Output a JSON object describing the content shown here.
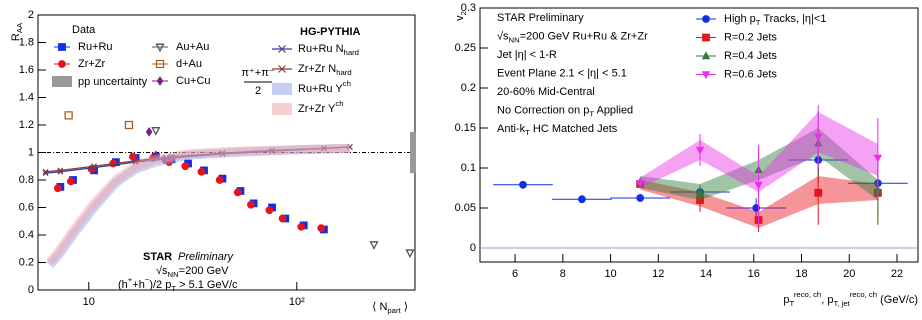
{
  "chart_data": [
    {
      "type": "scatter",
      "xlog": true,
      "ylabel": [
        "R",
        {
          "sub": "AA"
        }
      ],
      "xlabel": [
        "⟨ N",
        {
          "sub": "part"
        },
        " ⟩"
      ],
      "xlim": [
        5.7,
        370
      ],
      "ylim": [
        0,
        2
      ],
      "xticks": [
        10,
        {
          "value": 100,
          "label": "10²"
        }
      ],
      "yticks": [
        0,
        0.2,
        0.4,
        0.6,
        0.8,
        1,
        1.2,
        1.4,
        1.6,
        1.8,
        2
      ],
      "hline": 1,
      "legend_titles": [
        "Data",
        "HG-PYTHIA"
      ],
      "pp_uncertainty": {
        "name": [
          "pp uncertainty"
        ],
        "color": "#999999",
        "range": [
          0.85,
          1.15
        ]
      },
      "annotations": [
        [
          "STAR"
        ],
        [
          "Preliminary"
        ],
        [
          "√s",
          {
            "sub": "NN"
          },
          "=200 GeV"
        ],
        [
          "(h",
          {
            "sup": "+"
          },
          "+h",
          {
            "sup": "−"
          },
          ")/2  p",
          {
            "sub": "T"
          },
          " > 5.1 GeV/c"
        ]
      ],
      "series": [
        {
          "name": [
            "Ru+Ru"
          ],
          "type": "scatter",
          "marker": "square",
          "open": false,
          "color": "#1030e8",
          "x": [
            7.3,
            8.4,
            10.6,
            13.5,
            16.8,
            21,
            25,
            30,
            35.8,
            43.9,
            53.6,
            62,
            76,
            88,
            108,
            135
          ],
          "values": [
            0.75,
            0.8,
            0.87,
            0.93,
            0.96,
            0.97,
            0.95,
            0.92,
            0.87,
            0.81,
            0.72,
            0.63,
            0.6,
            0.52,
            0.47,
            0.44
          ]
        },
        {
          "name": [
            "Zr+Zr"
          ],
          "type": "scatter",
          "marker": "circle",
          "open": false,
          "color": "#e8141c",
          "x": [
            7.1,
            8.2,
            10.3,
            13.1,
            16.3,
            20.4,
            24.3,
            29.1,
            34.8,
            42.6,
            52,
            60.2,
            73.8,
            85.4,
            105,
            131
          ],
          "values": [
            0.74,
            0.79,
            0.88,
            0.92,
            0.97,
            0.96,
            0.93,
            0.9,
            0.86,
            0.8,
            0.71,
            0.62,
            0.58,
            0.52,
            0.46,
            0.45
          ]
        },
        {
          "name": [
            "Au+Au"
          ],
          "type": "scatter",
          "marker": "triangle-down",
          "open": true,
          "color": "#555555",
          "x": [
            21,
            235,
            350
          ],
          "values": [
            1.16,
            0.33,
            0.27
          ]
        },
        {
          "name": [
            "d+Au"
          ],
          "type": "scatter",
          "marker": "square",
          "open": true,
          "color": "#b05a1a",
          "x": [
            8,
            15.6
          ],
          "values": [
            1.27,
            1.2
          ]
        },
        {
          "name": [
            "Cu+Cu"
          ],
          "type": "scatter",
          "marker": "diamond",
          "open": false,
          "color": "#7a1f8a",
          "fraction_num": "π⁺+π⁻",
          "fraction_den": "2",
          "x": [
            19.5,
            21,
            23
          ],
          "values": [
            1.15,
            0.98,
            0.95
          ]
        },
        {
          "name": [
            "Ru+Ru N",
            {
              "sub": "hard"
            }
          ],
          "type": "line",
          "marker": "x",
          "open": false,
          "color": "#3b3b9a",
          "x": [
            6.2,
            7.3,
            10.6,
            16.8,
            25,
            43.9,
            76,
            135,
            180
          ],
          "values": [
            0.85,
            0.86,
            0.89,
            0.93,
            0.96,
            0.99,
            1.01,
            1.03,
            1.04
          ]
        },
        {
          "name": [
            "Zr+Zr N",
            {
              "sub": "hard"
            }
          ],
          "type": "line",
          "marker": "x",
          "open": false,
          "color": "#8b3a3a",
          "x": [
            6.2,
            7.3,
            10.6,
            16.8,
            25,
            43.9,
            76,
            135,
            180
          ],
          "values": [
            0.86,
            0.87,
            0.9,
            0.94,
            0.97,
            0.995,
            1.015,
            1.03,
            1.04
          ]
        },
        {
          "name": [
            "Ru+Ru Y",
            {
              "sup": "ch"
            }
          ],
          "type": "band",
          "color": "#8ea0e8",
          "x": [
            6.5,
            7.3,
            8.4,
            10.6,
            13.5,
            16.8,
            21,
            30,
            50,
            100,
            180
          ],
          "values": [
            0.18,
            0.27,
            0.4,
            0.6,
            0.78,
            0.88,
            0.93,
            0.98,
            1.0,
            1.02,
            1.03
          ]
        },
        {
          "name": [
            "Zr+Zr Y",
            {
              "sup": "ch"
            }
          ],
          "type": "band",
          "color": "#f0a0a0",
          "x": [
            6.5,
            7.3,
            8.4,
            10.6,
            13.5,
            16.8,
            21,
            30,
            50,
            100,
            180
          ],
          "values": [
            0.2,
            0.3,
            0.43,
            0.63,
            0.8,
            0.9,
            0.95,
            0.99,
            1.01,
            1.02,
            1.03
          ]
        }
      ]
    },
    {
      "type": "scatter",
      "xlog": false,
      "ylabel": [
        "v",
        {
          "sub": "2"
        }
      ],
      "xlabel": [
        "p",
        {
          "sub": "T"
        },
        {
          "sup": "reco, ch"
        },
        ", p",
        {
          "sub": "T, jet"
        },
        {
          "sup": "reco, ch"
        },
        " (GeV/c)"
      ],
      "xlim": [
        4.53,
        22.88
      ],
      "ylim": [
        -0.0175,
        0.3
      ],
      "xticks": [
        6,
        8,
        10,
        12,
        14,
        16,
        18,
        20,
        22
      ],
      "yticks": [
        0,
        0.05,
        0.1,
        0.15,
        0.2,
        0.25,
        0.3
      ],
      "hline": 0,
      "legend": "upper right",
      "annotations": [
        [
          "STAR Preliminary"
        ],
        [
          "√s",
          {
            "sub": "NN"
          },
          "=200 GeV Ru+Ru & Zr+Zr"
        ],
        [
          "Jet |η| < 1-R"
        ],
        [
          "Event Plane 2.1 < |η| < 5.1"
        ],
        [
          "20-60% Mid-Central"
        ],
        [
          "No Correction on p",
          {
            "sub": "T"
          },
          " Applied"
        ],
        [
          "Anti-k",
          {
            "sub": "T"
          },
          " HC Matched Jets"
        ]
      ],
      "series": [
        {
          "name": [
            "High p",
            {
              "sub": "T"
            },
            " Tracks, |η|<1"
          ],
          "type": "scatter",
          "marker": "circle",
          "open": false,
          "color": "#1030e8",
          "x": [
            6.33,
            8.8,
            11.24,
            13.75,
            16.1,
            18.7,
            21.2
          ],
          "values": [
            0.079,
            0.061,
            0.0625,
            0.07,
            0.05,
            0.11,
            0.081
          ],
          "errors": [
            0.004,
            0.004,
            0.005,
            0.008,
            0.012,
            0.03,
            0.02
          ],
          "xerrors": 1.25
        },
        {
          "name": [
            "R=0.2 Jets"
          ],
          "type": "scatter",
          "marker": "square",
          "open": false,
          "color": "#e8141c",
          "x": [
            11.24,
            13.75,
            16.2,
            18.7,
            21.2
          ],
          "values": [
            0.08,
            0.06,
            0.035,
            0.069,
            0.069
          ],
          "errors": [
            0.005,
            0.015,
            0.015,
            0.04,
            0.04
          ],
          "sys_low": [
            0.073,
            0.052,
            0.025,
            0.055,
            0.06
          ],
          "sys_high": [
            0.085,
            0.07,
            0.045,
            0.09,
            0.08
          ]
        },
        {
          "name": [
            "R=0.4 Jets"
          ],
          "type": "scatter",
          "marker": "triangle-up",
          "open": false,
          "color": "#2e7d3a",
          "x": [
            11.24,
            13.75,
            16.2,
            18.7,
            21.2
          ],
          "values": [
            0.0825,
            0.069,
            0.0975,
            0.131,
            0.0725
          ],
          "errors": [
            0.005,
            0.01,
            0.03,
            0.04,
            0.04
          ],
          "sys_low": [
            0.075,
            0.06,
            0.085,
            0.115,
            0.06
          ],
          "sys_high": [
            0.09,
            0.08,
            0.11,
            0.15,
            0.085
          ]
        },
        {
          "name": [
            "R=0.6 Jets"
          ],
          "type": "scatter",
          "marker": "triangle-down",
          "open": false,
          "color": "#e830e8",
          "x": [
            11.24,
            13.75,
            16.2,
            18.7,
            21.2
          ],
          "values": [
            0.081,
            0.1225,
            0.079,
            0.139,
            0.1125
          ],
          "errors": [
            0.005,
            0.02,
            0.05,
            0.04,
            0.05
          ],
          "sys_low": [
            0.075,
            0.11,
            0.07,
            0.12,
            0.09
          ],
          "sys_high": [
            0.088,
            0.135,
            0.09,
            0.17,
            0.13
          ]
        }
      ]
    }
  ]
}
